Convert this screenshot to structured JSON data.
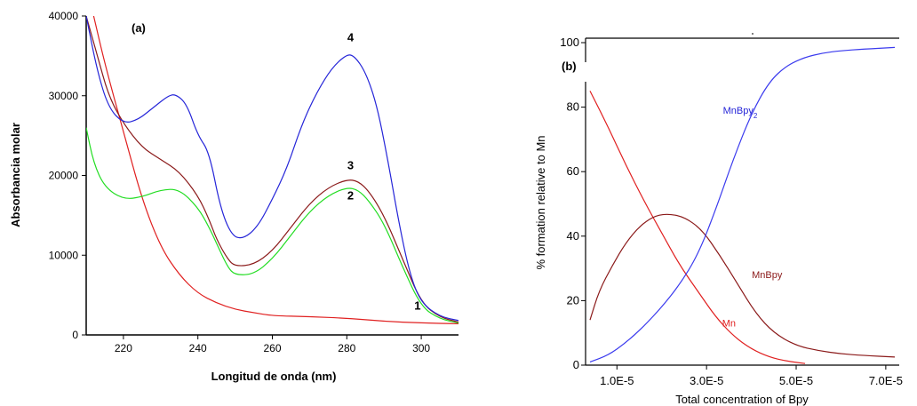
{
  "chart_data": [
    {
      "type": "line",
      "panel_label": "(a)",
      "xlabel": "Longitud de onda (nm)",
      "ylabel": "Absorbancia molar",
      "xlim": [
        210,
        310
      ],
      "ylim": [
        0,
        40000
      ],
      "x_ticks": [
        220,
        240,
        260,
        280,
        300
      ],
      "y_ticks": [
        0,
        10000,
        20000,
        30000,
        40000
      ],
      "x_tick_labels": [
        "220",
        "240",
        "260",
        "280",
        "300"
      ],
      "y_tick_labels": [
        "0",
        "10000",
        "20000",
        "30000",
        "40000"
      ],
      "grid": false,
      "series": [
        {
          "name": "1",
          "color": "#e02020",
          "points": [
            [
              212,
              40000
            ],
            [
              215,
              34000
            ],
            [
              220,
              25500
            ],
            [
              225,
              17000
            ],
            [
              230,
              11000
            ],
            [
              235,
              7500
            ],
            [
              240,
              5200
            ],
            [
              245,
              4000
            ],
            [
              250,
              3200
            ],
            [
              255,
              2800
            ],
            [
              260,
              2400
            ],
            [
              270,
              2300
            ],
            [
              280,
              2100
            ],
            [
              290,
              1700
            ],
            [
              300,
              1500
            ],
            [
              310,
              1400
            ]
          ]
        },
        {
          "name": "2",
          "color": "#22dd22",
          "points": [
            [
              210,
              26000
            ],
            [
              212,
              21500
            ],
            [
              215,
              18500
            ],
            [
              220,
              17000
            ],
            [
              225,
              17300
            ],
            [
              230,
              18200
            ],
            [
              235,
              18300
            ],
            [
              240,
              16000
            ],
            [
              243,
              13500
            ],
            [
              245,
              11500
            ],
            [
              248,
              8500
            ],
            [
              250,
              7500
            ],
            [
              255,
              7600
            ],
            [
              260,
              9500
            ],
            [
              265,
              12500
            ],
            [
              270,
              15500
            ],
            [
              275,
              17500
            ],
            [
              280,
              18500
            ],
            [
              283,
              18200
            ],
            [
              286,
              16800
            ],
            [
              290,
              14000
            ],
            [
              295,
              8500
            ],
            [
              300,
              3500
            ],
            [
              305,
              2000
            ],
            [
              310,
              1500
            ]
          ]
        },
        {
          "name": "3",
          "color": "#8b1a1a",
          "points": [
            [
              210,
              40000
            ],
            [
              213,
              35000
            ],
            [
              216,
              30000
            ],
            [
              220,
              26500
            ],
            [
              225,
              23500
            ],
            [
              230,
              22000
            ],
            [
              235,
              20500
            ],
            [
              240,
              17500
            ],
            [
              243,
              14500
            ],
            [
              245,
              12000
            ],
            [
              248,
              9500
            ],
            [
              250,
              8600
            ],
            [
              255,
              8800
            ],
            [
              260,
              10500
            ],
            [
              265,
              13500
            ],
            [
              270,
              16500
            ],
            [
              275,
              18500
            ],
            [
              280,
              19500
            ],
            [
              283,
              19300
            ],
            [
              286,
              18000
            ],
            [
              290,
              15000
            ],
            [
              295,
              9500
            ],
            [
              300,
              4000
            ],
            [
              305,
              2200
            ],
            [
              310,
              1600
            ]
          ]
        },
        {
          "name": "4",
          "color": "#2525d8",
          "points": [
            [
              210,
              40000
            ],
            [
              213,
              33000
            ],
            [
              216,
              28500
            ],
            [
              220,
              26500
            ],
            [
              224,
              27000
            ],
            [
              228,
              28500
            ],
            [
              232,
              30000
            ],
            [
              234,
              30200
            ],
            [
              237,
              29000
            ],
            [
              240,
              25000
            ],
            [
              243,
              23000
            ],
            [
              246,
              16000
            ],
            [
              249,
              12500
            ],
            [
              252,
              12000
            ],
            [
              256,
              13500
            ],
            [
              260,
              17000
            ],
            [
              264,
              21000
            ],
            [
              268,
              26500
            ],
            [
              272,
              30500
            ],
            [
              276,
              33500
            ],
            [
              280,
              35200
            ],
            [
              282,
              35000
            ],
            [
              285,
              33000
            ],
            [
              288,
              29000
            ],
            [
              291,
              22000
            ],
            [
              294,
              14000
            ],
            [
              297,
              7500
            ],
            [
              300,
              4000
            ],
            [
              305,
              2300
            ],
            [
              310,
              1800
            ]
          ]
        }
      ],
      "annotations": [
        {
          "text": "1",
          "x": 299,
          "y": 3200
        },
        {
          "text": "2",
          "x": 281,
          "y": 17000
        },
        {
          "text": "3",
          "x": 281,
          "y": 20800
        },
        {
          "text": "4",
          "x": 281,
          "y": 36800
        }
      ]
    },
    {
      "type": "line",
      "panel_label": "(b)",
      "xlabel": "Total concentration of Bpy",
      "ylabel": "% formation relative to Mn",
      "xlim": [
        3e-06,
        7.3e-05
      ],
      "ylim": [
        0,
        100
      ],
      "x_ticks": [
        1e-05,
        3e-05,
        5e-05,
        7e-05
      ],
      "y_ticks": [
        0,
        20,
        40,
        60,
        80,
        100
      ],
      "x_tick_labels": [
        "1.0E-5",
        "3.0E-5",
        "5.0E-5",
        "7.0E-5"
      ],
      "y_tick_labels": [
        "0",
        "20",
        "40",
        "60",
        "80",
        "100"
      ],
      "grid": false,
      "series": [
        {
          "name": "Mn",
          "color": "#e02020",
          "points": [
            [
              4e-06,
              85
            ],
            [
              8e-06,
              74
            ],
            [
              1.2e-05,
              62
            ],
            [
              1.6e-05,
              51
            ],
            [
              2e-05,
              41
            ],
            [
              2.4e-05,
              31
            ],
            [
              2.8e-05,
              23
            ],
            [
              3.2e-05,
              15
            ],
            [
              3.6e-05,
              9
            ],
            [
              4e-05,
              5
            ],
            [
              4.4e-05,
              2.5
            ],
            [
              4.8e-05,
              1.2
            ],
            [
              5.2e-05,
              0.5
            ]
          ]
        },
        {
          "name": "MnBpy",
          "color": "#8b1a1a",
          "points": [
            [
              4e-06,
              14
            ],
            [
              6e-06,
              23
            ],
            [
              9e-06,
              31
            ],
            [
              1.2e-05,
              38
            ],
            [
              1.5e-05,
              43
            ],
            [
              1.8e-05,
              46
            ],
            [
              2.1e-05,
              47
            ],
            [
              2.5e-05,
              46
            ],
            [
              2.9e-05,
              42
            ],
            [
              3.3e-05,
              34
            ],
            [
              3.7e-05,
              25
            ],
            [
              4.1e-05,
              16
            ],
            [
              4.5e-05,
              10
            ],
            [
              5e-05,
              6
            ],
            [
              5.5e-05,
              4.5
            ],
            [
              6e-05,
              3.5
            ],
            [
              6.5e-05,
              3
            ],
            [
              7.2e-05,
              2.5
            ]
          ]
        },
        {
          "name": "MnBpy₂",
          "color": "#3a3aee",
          "points": [
            [
              4e-06,
              1
            ],
            [
              8e-06,
              3
            ],
            [
              1.2e-05,
              7
            ],
            [
              1.6e-05,
              12
            ],
            [
              2e-05,
              18
            ],
            [
              2.4e-05,
              25
            ],
            [
              2.8e-05,
              34
            ],
            [
              3.2e-05,
              48
            ],
            [
              3.6e-05,
              64
            ],
            [
              4e-05,
              78
            ],
            [
              4.4e-05,
              88
            ],
            [
              4.8e-05,
              93
            ],
            [
              5.2e-05,
              95.5
            ],
            [
              5.6e-05,
              96.8
            ],
            [
              6e-05,
              97.5
            ],
            [
              6.5e-05,
              98
            ],
            [
              7.2e-05,
              98.5
            ]
          ]
        }
      ],
      "annotations": [
        {
          "text": "MnBpy",
          "sub": "2",
          "x": 3.75e-05,
          "y": 78,
          "color": "#2525d8"
        },
        {
          "text": "MnBpy",
          "sub": "",
          "x": 4.35e-05,
          "y": 27,
          "color": "#8b1a1a"
        },
        {
          "text": "Mn",
          "sub": "",
          "x": 3.5e-05,
          "y": 12,
          "color": "#e02020"
        }
      ]
    }
  ]
}
